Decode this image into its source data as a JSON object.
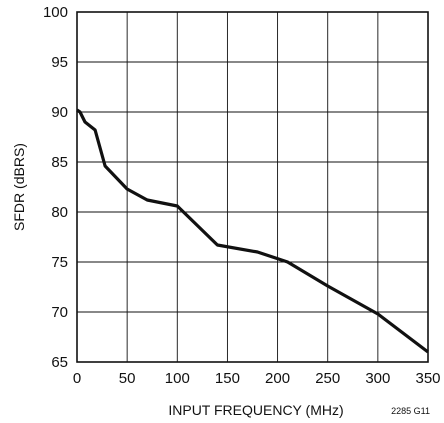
{
  "chart_data": {
    "type": "line",
    "title": "",
    "xlabel": "INPUT FREQUENCY (MHz)",
    "ylabel": "SFDR (dBRS)",
    "xlim": [
      0,
      350
    ],
    "ylim": [
      65,
      100
    ],
    "xticks": [
      0,
      50,
      100,
      150,
      200,
      250,
      300,
      350
    ],
    "yticks": [
      65,
      70,
      75,
      80,
      85,
      90,
      95,
      100
    ],
    "grid": true,
    "figure_id": "2285 G11",
    "series": [
      {
        "x": [
          0,
          3,
          8,
          18,
          28,
          50,
          70,
          85,
          100,
          140,
          180,
          210,
          250,
          300,
          350
        ],
        "y": [
          90.2,
          90.0,
          89.0,
          88.2,
          84.6,
          82.3,
          81.2,
          80.9,
          80.6,
          76.7,
          76.0,
          75.0,
          72.6,
          69.8,
          66.0
        ]
      }
    ]
  }
}
